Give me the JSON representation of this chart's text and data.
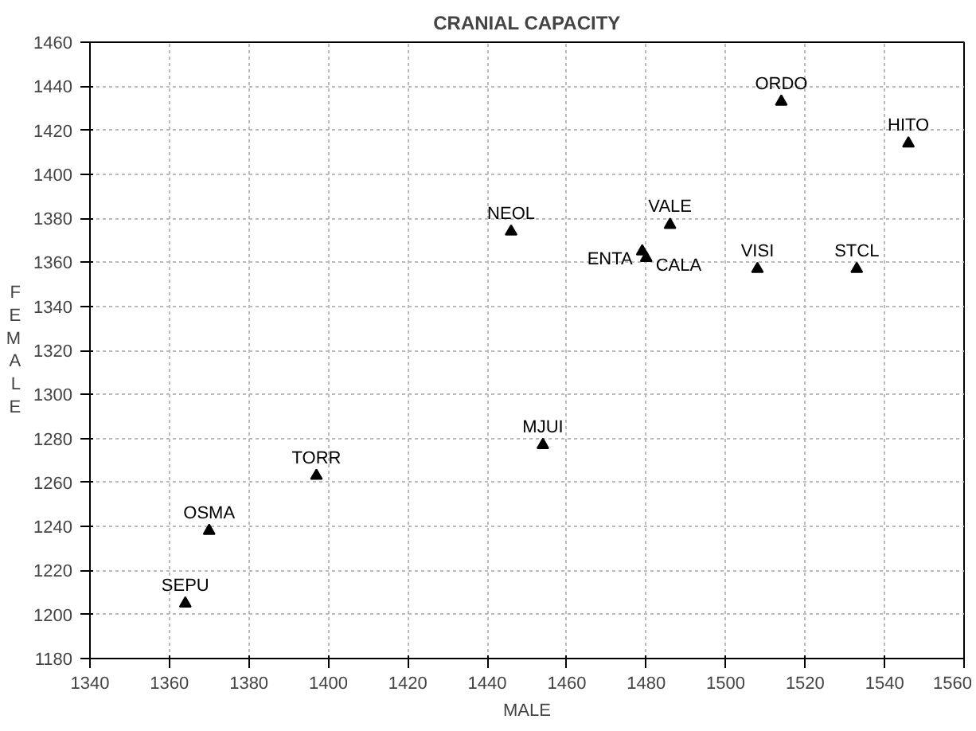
{
  "chart_data": {
    "type": "scatter",
    "title": "CRANIAL CAPACITY",
    "xlabel": "MALE",
    "ylabel": "FEMALE",
    "xlim": [
      1340,
      1560
    ],
    "ylim": [
      1180,
      1460
    ],
    "xticks": [
      1340,
      1360,
      1380,
      1400,
      1420,
      1440,
      1460,
      1480,
      1500,
      1520,
      1540,
      1560
    ],
    "yticks": [
      1180,
      1200,
      1220,
      1240,
      1260,
      1280,
      1300,
      1320,
      1340,
      1360,
      1380,
      1400,
      1420,
      1440,
      1460
    ],
    "grid": true,
    "marker": "triangle",
    "series": [
      {
        "name": "ORDO",
        "color": "#000000",
        "x": [
          1514
        ],
        "values": [
          1433
        ]
      },
      {
        "name": "HITO",
        "color": "#000000",
        "x": [
          1546
        ],
        "values": [
          1414
        ]
      },
      {
        "name": "NEOL",
        "color": "#000000",
        "x": [
          1446
        ],
        "values": [
          1374
        ]
      },
      {
        "name": "VALE",
        "color": "#000000",
        "x": [
          1486
        ],
        "values": [
          1377
        ]
      },
      {
        "name": "ENTA",
        "color": "#000000",
        "x": [
          1479
        ],
        "values": [
          1365
        ]
      },
      {
        "name": "CALA",
        "color": "#000000",
        "x": [
          1480
        ],
        "values": [
          1362
        ]
      },
      {
        "name": "VISI",
        "color": "#000000",
        "x": [
          1508
        ],
        "values": [
          1357
        ]
      },
      {
        "name": "STCL",
        "color": "#000000",
        "x": [
          1533
        ],
        "values": [
          1357
        ]
      },
      {
        "name": "MJUI",
        "color": "#000000",
        "x": [
          1454
        ],
        "values": [
          1277
        ]
      },
      {
        "name": "TORR",
        "color": "#000000",
        "x": [
          1397
        ],
        "values": [
          1263
        ]
      },
      {
        "name": "OSMA",
        "color": "#000000",
        "x": [
          1370
        ],
        "values": [
          1238
        ]
      },
      {
        "name": "SEPU",
        "color": "#000000",
        "x": [
          1364
        ],
        "values": [
          1205
        ]
      }
    ]
  }
}
